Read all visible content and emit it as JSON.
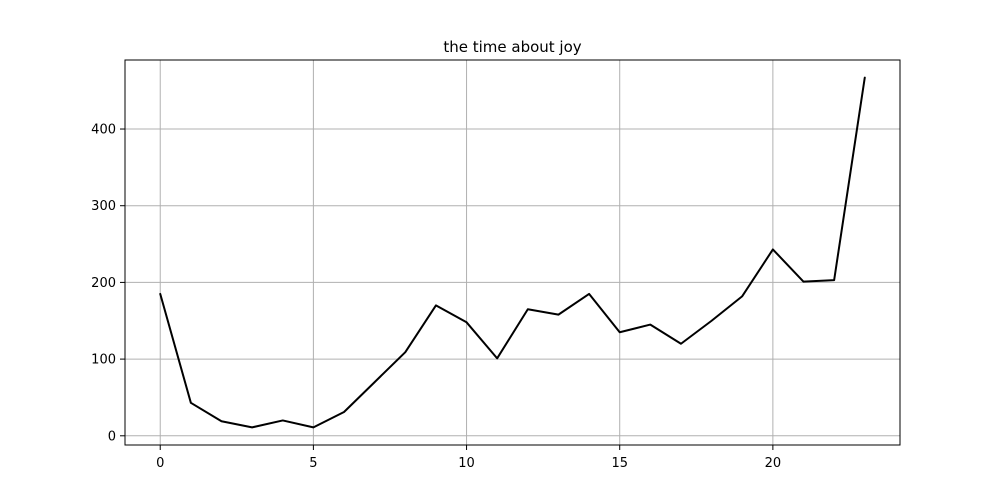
{
  "chart_data": {
    "type": "line",
    "title": "the time about joy",
    "xlabel": "",
    "ylabel": "",
    "xlim": [
      -1.15,
      24.15
    ],
    "ylim": [
      -12,
      490
    ],
    "xticks": [
      0,
      5,
      10,
      15,
      20
    ],
    "yticks": [
      0,
      100,
      200,
      300,
      400
    ],
    "grid": true,
    "series": [
      {
        "color": "#000000",
        "x": [
          0,
          1,
          2,
          3,
          4,
          5,
          6,
          7,
          8,
          9,
          10,
          11,
          12,
          13,
          14,
          15,
          16,
          17,
          18,
          19,
          20,
          21,
          22,
          23
        ],
        "y": [
          185,
          43,
          19,
          11,
          20,
          11,
          31,
          70,
          109,
          170,
          148,
          101,
          165,
          158,
          185,
          135,
          145,
          120,
          150,
          182,
          243,
          201,
          203,
          467
        ]
      }
    ]
  }
}
